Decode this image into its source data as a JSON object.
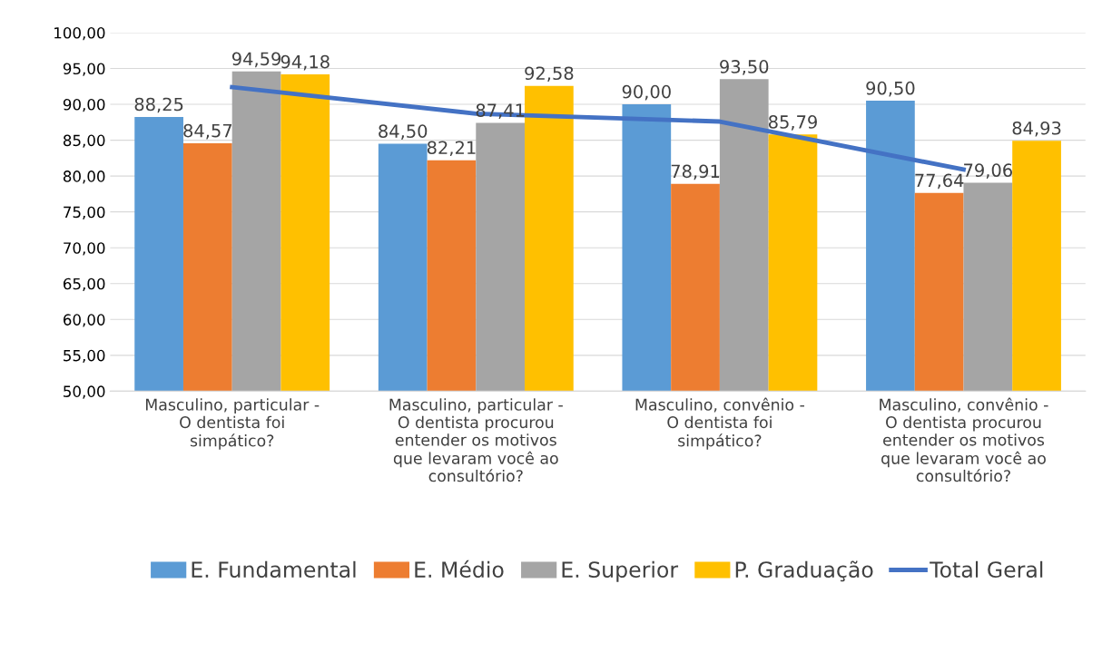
{
  "chart_data": {
    "type": "bar",
    "categories": [
      "Masculino, particular - O dentista foi simpático?",
      "Masculino, particular - O dentista procurou entender os motivos que levaram você ao consultório?",
      "Masculino, convênio - O dentista foi simpático?",
      "Masculino, convênio - O dentista procurou entender os motivos que levaram você ao consultório?"
    ],
    "series": [
      {
        "name": "E. Fundamental",
        "color": "#5b9bd5",
        "values": [
          88.25,
          84.5,
          90.0,
          90.5
        ],
        "value_labels": [
          "88,25",
          "84,50",
          "90,00",
          "90,50"
        ]
      },
      {
        "name": "E. Médio",
        "color": "#ed7d31",
        "values": [
          84.57,
          82.21,
          78.91,
          77.64
        ],
        "value_labels": [
          "84,57",
          "82,21",
          "78,91",
          "77,64"
        ]
      },
      {
        "name": "E. Superior",
        "color": "#a5a5a5",
        "values": [
          94.59,
          87.41,
          93.5,
          79.06
        ],
        "value_labels": [
          "94,59",
          "87,41",
          "93,50",
          "79,06"
        ]
      },
      {
        "name": "P. Graduação",
        "color": "#ffc000",
        "values": [
          94.18,
          92.58,
          85.79,
          84.93
        ],
        "value_labels": [
          "94,18",
          "92,58",
          "85,79",
          "84,93"
        ]
      },
      {
        "name": "Total Geral",
        "type": "line",
        "color": "#4472c4",
        "values": [
          92.4,
          88.7,
          87.6,
          80.9
        ]
      }
    ],
    "ylim": [
      50,
      100
    ],
    "yticks": [
      {
        "value": 50,
        "label": "50,00"
      },
      {
        "value": 55,
        "label": "55,00"
      },
      {
        "value": 60,
        "label": "60,00"
      },
      {
        "value": 65,
        "label": "65,00"
      },
      {
        "value": 70,
        "label": "70,00"
      },
      {
        "value": 75,
        "label": "75,00"
      },
      {
        "value": 80,
        "label": "80,00"
      },
      {
        "value": 85,
        "label": "85,00"
      },
      {
        "value": 90,
        "label": "90,00"
      },
      {
        "value": 95,
        "label": "95,00"
      },
      {
        "value": 100,
        "label": "100,00"
      }
    ],
    "grid": "y",
    "legend": "bottom",
    "marker": "none"
  }
}
